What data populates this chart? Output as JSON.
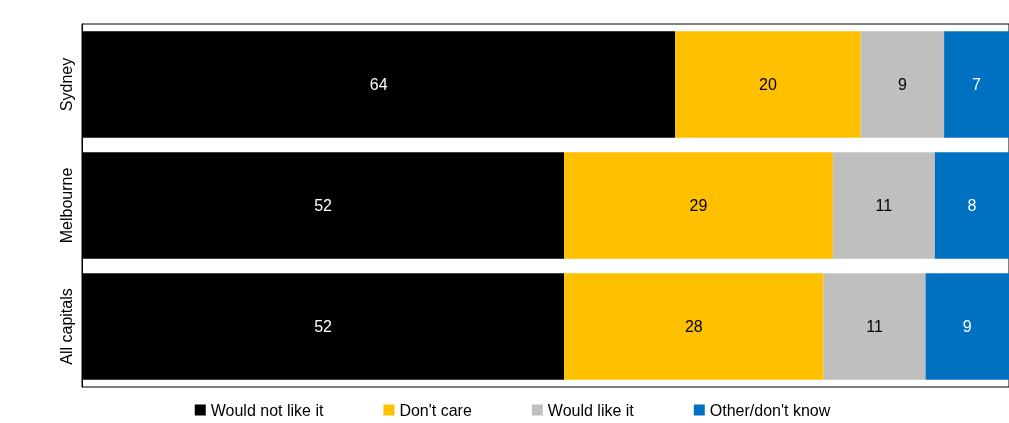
{
  "chart_data": {
    "type": "bar",
    "orientation": "horizontal",
    "stacked": true,
    "categories": [
      "Sydney",
      "Melbourne",
      "All capitals"
    ],
    "series": [
      {
        "name": "Would not like it",
        "color": "#000000",
        "values": [
          64,
          52,
          52
        ]
      },
      {
        "name": "Don't care",
        "color": "#ffc000",
        "values": [
          20,
          29,
          28
        ]
      },
      {
        "name": "Would like it",
        "color": "#bfbfbf",
        "values": [
          9,
          11,
          11
        ]
      },
      {
        "name": "Other/don't know",
        "color": "#0070c0",
        "values": [
          7,
          8,
          9
        ]
      }
    ],
    "xlim": [
      0,
      100
    ],
    "tick_labels": "y",
    "data_labels": true,
    "legend": "bottom",
    "grid": false
  }
}
